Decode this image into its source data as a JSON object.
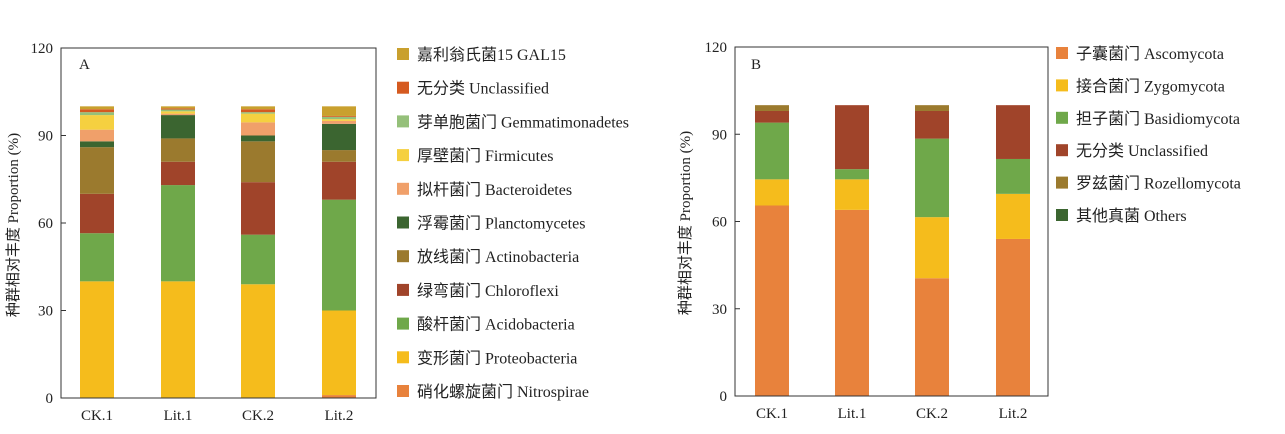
{
  "chart_data": [
    {
      "type": "bar",
      "stacked": true,
      "panel_label": "A",
      "ylabel": "种群相对丰度 Proportion (%)",
      "ylim": [
        0,
        120
      ],
      "yticks": [
        "0",
        "30",
        "60",
        "90",
        "120"
      ],
      "categories": [
        "CK.1",
        "Lit.1",
        "CK.2",
        "Lit.2"
      ],
      "legend_position": "right",
      "series": [
        {
          "name": "硝化螺旋菌门 Nitrospirae",
          "color": "#E8823C",
          "values": [
            0,
            0,
            0,
            1
          ]
        },
        {
          "name": "变形菌门 Proteobacteria",
          "color": "#F5BC1C",
          "values": [
            40,
            40,
            39,
            29
          ]
        },
        {
          "name": "酸杆菌门 Acidobacteria",
          "color": "#6FA84A",
          "values": [
            16.5,
            33,
            17,
            38
          ]
        },
        {
          "name": "绿弯菌门 Chloroflexi",
          "color": "#A0442A",
          "values": [
            13.5,
            8,
            18,
            13
          ]
        },
        {
          "name": "放线菌门 Actinobacteria",
          "color": "#9B7A2E",
          "values": [
            16,
            8,
            14,
            4
          ]
        },
        {
          "name": "浮霉菌门 Planctomycetes",
          "color": "#3B6530",
          "values": [
            2,
            8,
            2,
            9
          ]
        },
        {
          "name": "拟杆菌门 Bacteroidetes",
          "color": "#F0A06A",
          "values": [
            4,
            0.5,
            4.5,
            1
          ]
        },
        {
          "name": "厚壁菌门 Firmicutes",
          "color": "#F5D040",
          "values": [
            5,
            0.8,
            3,
            0.6
          ]
        },
        {
          "name": "芽单胞菌门 Gemmatimonadetes",
          "color": "#95C07A",
          "values": [
            1,
            0.6,
            0.5,
            0.8
          ]
        },
        {
          "name": "无分类 Unclassified",
          "color": "#D55A20",
          "values": [
            1,
            0.4,
            1,
            0.3
          ]
        },
        {
          "name": "嘉利翁氏菌15 GAL15",
          "color": "#C9A02E",
          "values": [
            1,
            0.7,
            1,
            3.3
          ]
        }
      ]
    },
    {
      "type": "bar",
      "stacked": true,
      "panel_label": "B",
      "ylabel": "种群相对丰度 Proportion (%)",
      "ylim": [
        0,
        120
      ],
      "yticks": [
        "0",
        "30",
        "60",
        "90",
        "120"
      ],
      "categories": [
        "CK.1",
        "Lit.1",
        "CK.2",
        "Lit.2"
      ],
      "legend_position": "right",
      "series": [
        {
          "name": "子囊菌门 Ascomycota",
          "color": "#E8823C",
          "values": [
            65.5,
            64,
            40.5,
            54
          ]
        },
        {
          "name": "接合菌门 Zygomycota",
          "color": "#F5BC1C",
          "values": [
            9,
            10.5,
            21,
            15.5
          ]
        },
        {
          "name": "担子菌门 Basidiomycota",
          "color": "#6FA84A",
          "values": [
            19.5,
            3.5,
            27,
            12
          ]
        },
        {
          "name": "无分类 Unclassified",
          "color": "#A0442A",
          "values": [
            4,
            22,
            9.5,
            18.5
          ]
        },
        {
          "name": "罗兹菌门 Rozellomycota",
          "color": "#9B7A2E",
          "values": [
            2,
            0,
            2,
            0
          ]
        },
        {
          "name": "其他真菌 Others",
          "color": "#3B6530",
          "values": [
            0,
            0,
            0,
            0
          ]
        }
      ]
    }
  ]
}
